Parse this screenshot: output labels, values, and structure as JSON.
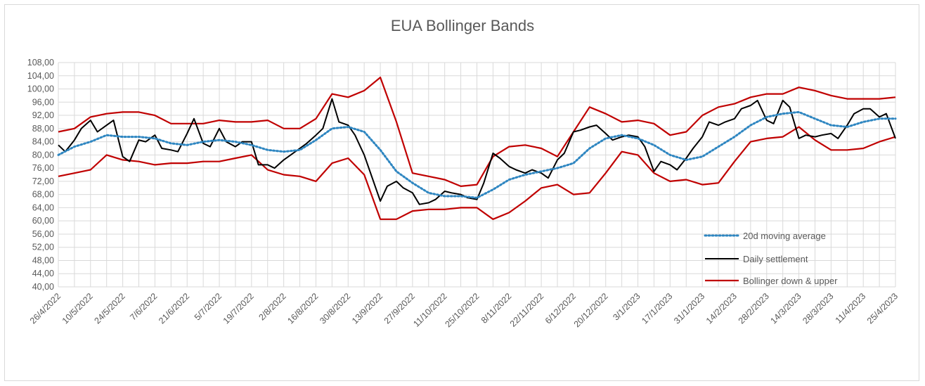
{
  "chart_data": {
    "type": "line",
    "title": "EUA Bollinger Bands",
    "xlabel": "",
    "ylabel": "",
    "ylim": [
      40,
      108
    ],
    "y_ticks": [
      "40,00",
      "44,00",
      "48,00",
      "52,00",
      "56,00",
      "60,00",
      "64,00",
      "68,00",
      "72,00",
      "76,00",
      "80,00",
      "84,00",
      "88,00",
      "92,00",
      "96,00",
      "100,00",
      "104,00",
      "108,00"
    ],
    "x_ticks": [
      "26/4/2022",
      "10/5/2022",
      "24/5/2022",
      "7/6/2022",
      "21/6/2022",
      "5/7/2022",
      "19/7/2022",
      "2/8/2022",
      "16/8/2022",
      "30/8/2022",
      "13/9/2022",
      "27/9/2022",
      "11/10/2022",
      "25/10/2022",
      "8/11/2022",
      "22/11/2022",
      "6/12/2022",
      "20/12/2022",
      "3/1/2023",
      "17/1/2023",
      "31/1/2023",
      "14/2/2023",
      "28/2/2023",
      "14/3/2023",
      "28/3/2023",
      "11/4/2023",
      "25/4/2023"
    ],
    "grid": true,
    "legend_position": "bottom-right",
    "series": [
      {
        "name": "20d moving average",
        "color": "#2e86c1",
        "style": "dotted",
        "x": [
          "26/4/2022",
          "3/5/2022",
          "10/5/2022",
          "17/5/2022",
          "24/5/2022",
          "31/5/2022",
          "7/6/2022",
          "14/6/2022",
          "21/6/2022",
          "28/6/2022",
          "5/7/2022",
          "12/7/2022",
          "19/7/2022",
          "26/7/2022",
          "2/8/2022",
          "9/8/2022",
          "16/8/2022",
          "23/8/2022",
          "30/8/2022",
          "6/9/2022",
          "13/9/2022",
          "20/9/2022",
          "27/9/2022",
          "4/10/2022",
          "11/10/2022",
          "18/10/2022",
          "25/10/2022",
          "1/11/2022",
          "8/11/2022",
          "15/11/2022",
          "22/11/2022",
          "29/11/2022",
          "6/12/2022",
          "13/12/2022",
          "20/12/2022",
          "27/12/2022",
          "3/1/2023",
          "10/1/2023",
          "17/1/2023",
          "24/1/2023",
          "31/1/2023",
          "7/2/2023",
          "14/2/2023",
          "21/2/2023",
          "28/2/2023",
          "7/3/2023",
          "14/3/2023",
          "21/3/2023",
          "28/3/2023",
          "4/4/2023",
          "11/4/2023",
          "18/4/2023",
          "25/4/2023"
        ],
        "values": [
          80.0,
          82.5,
          84.0,
          86.0,
          85.5,
          85.5,
          85.0,
          83.5,
          83.0,
          84.0,
          84.5,
          84.0,
          83.0,
          81.5,
          81.0,
          81.5,
          84.5,
          88.0,
          88.5,
          87.0,
          81.5,
          75.0,
          71.5,
          68.5,
          67.5,
          67.5,
          67.0,
          69.5,
          72.5,
          74.0,
          75.0,
          76.0,
          77.5,
          82.0,
          85.0,
          86.0,
          85.0,
          83.0,
          80.0,
          78.5,
          79.5,
          82.5,
          85.5,
          89.0,
          91.5,
          92.5,
          93.0,
          91.0,
          89.0,
          88.5,
          90.0,
          91.0,
          91.0
        ]
      },
      {
        "name": "Daily settlement",
        "color": "#000000",
        "style": "solid",
        "x": [
          "26/4/2022",
          "29/4/2022",
          "3/5/2022",
          "6/5/2022",
          "10/5/2022",
          "13/5/2022",
          "17/5/2022",
          "20/5/2022",
          "24/5/2022",
          "27/5/2022",
          "31/5/2022",
          "3/6/2022",
          "7/6/2022",
          "10/6/2022",
          "14/6/2022",
          "17/6/2022",
          "21/6/2022",
          "24/6/2022",
          "28/6/2022",
          "1/7/2022",
          "5/7/2022",
          "8/7/2022",
          "12/7/2022",
          "15/7/2022",
          "19/7/2022",
          "22/7/2022",
          "26/7/2022",
          "29/7/2022",
          "2/8/2022",
          "5/8/2022",
          "9/8/2022",
          "12/8/2022",
          "16/8/2022",
          "19/8/2022",
          "23/8/2022",
          "26/8/2022",
          "30/8/2022",
          "2/9/2022",
          "6/9/2022",
          "9/9/2022",
          "13/9/2022",
          "16/9/2022",
          "20/9/2022",
          "23/9/2022",
          "27/9/2022",
          "30/9/2022",
          "4/10/2022",
          "7/10/2022",
          "11/10/2022",
          "14/10/2022",
          "18/10/2022",
          "21/10/2022",
          "25/10/2022",
          "28/10/2022",
          "1/11/2022",
          "4/11/2022",
          "8/11/2022",
          "11/11/2022",
          "15/11/2022",
          "18/11/2022",
          "22/11/2022",
          "25/11/2022",
          "29/11/2022",
          "2/12/2022",
          "6/12/2022",
          "9/12/2022",
          "13/12/2022",
          "16/12/2022",
          "20/12/2022",
          "23/12/2022",
          "27/12/2022",
          "30/12/2022",
          "3/1/2023",
          "6/1/2023",
          "10/1/2023",
          "13/1/2023",
          "17/1/2023",
          "20/1/2023",
          "24/1/2023",
          "27/1/2023",
          "31/1/2023",
          "3/2/2023",
          "7/2/2023",
          "10/2/2023",
          "14/2/2023",
          "17/2/2023",
          "21/2/2023",
          "24/2/2023",
          "28/2/2023",
          "3/3/2023",
          "7/3/2023",
          "10/3/2023",
          "14/3/2023",
          "17/3/2023",
          "21/3/2023",
          "24/3/2023",
          "28/3/2023",
          "31/3/2023",
          "4/4/2023",
          "7/4/2023",
          "11/4/2023",
          "14/4/2023",
          "18/4/2023",
          "21/4/2023",
          "25/4/2023"
        ],
        "values": [
          83.0,
          81.0,
          84.5,
          88.0,
          90.5,
          87.0,
          89.0,
          90.5,
          79.5,
          78.0,
          84.5,
          84.0,
          86.0,
          82.0,
          81.5,
          81.0,
          86.5,
          91.0,
          83.5,
          82.5,
          88.0,
          84.0,
          82.5,
          84.0,
          84.0,
          77.0,
          77.0,
          76.0,
          78.5,
          80.0,
          82.0,
          83.5,
          86.0,
          88.0,
          97.0,
          90.0,
          89.0,
          86.0,
          80.0,
          74.0,
          66.0,
          70.5,
          72.0,
          70.0,
          68.5,
          65.0,
          65.5,
          66.5,
          69.0,
          68.5,
          68.0,
          67.0,
          66.5,
          71.5,
          80.5,
          79.0,
          76.5,
          75.5,
          74.5,
          75.5,
          74.5,
          73.0,
          78.5,
          80.5,
          87.0,
          87.5,
          88.5,
          89.0,
          86.5,
          84.5,
          85.5,
          86.0,
          85.5,
          82.5,
          75.0,
          78.0,
          77.0,
          75.5,
          79.0,
          82.0,
          85.5,
          90.0,
          89.0,
          90.0,
          91.0,
          94.0,
          95.0,
          96.5,
          90.5,
          89.5,
          96.5,
          94.5,
          85.0,
          86.0,
          85.5,
          86.0,
          86.5,
          85.0,
          89.0,
          92.5,
          94.0,
          94.0,
          91.5,
          92.5,
          85.0
        ]
      },
      {
        "name": "Bollinger down & upper",
        "color": "#c00000",
        "style": "solid",
        "lines": [
          {
            "part": "upper",
            "x": [
              "26/4/2022",
              "3/5/2022",
              "10/5/2022",
              "17/5/2022",
              "24/5/2022",
              "31/5/2022",
              "7/6/2022",
              "14/6/2022",
              "21/6/2022",
              "28/6/2022",
              "5/7/2022",
              "12/7/2022",
              "19/7/2022",
              "26/7/2022",
              "2/8/2022",
              "9/8/2022",
              "16/8/2022",
              "23/8/2022",
              "30/8/2022",
              "6/9/2022",
              "13/9/2022",
              "20/9/2022",
              "27/9/2022",
              "4/10/2022",
              "11/10/2022",
              "18/10/2022",
              "25/10/2022",
              "1/11/2022",
              "8/11/2022",
              "15/11/2022",
              "22/11/2022",
              "29/11/2022",
              "6/12/2022",
              "13/12/2022",
              "20/12/2022",
              "27/12/2022",
              "3/1/2023",
              "10/1/2023",
              "17/1/2023",
              "24/1/2023",
              "31/1/2023",
              "7/2/2023",
              "14/2/2023",
              "21/2/2023",
              "28/2/2023",
              "7/3/2023",
              "14/3/2023",
              "21/3/2023",
              "28/3/2023",
              "4/4/2023",
              "11/4/2023",
              "18/4/2023",
              "25/4/2023"
            ],
            "values": [
              87.0,
              88.0,
              91.5,
              92.5,
              93.0,
              93.0,
              92.0,
              89.5,
              89.5,
              89.5,
              90.5,
              90.0,
              90.0,
              90.5,
              88.0,
              88.0,
              91.0,
              98.5,
              97.5,
              99.5,
              103.5,
              90.0,
              74.5,
              73.5,
              72.5,
              70.5,
              71.0,
              79.5,
              82.5,
              83.0,
              82.0,
              79.5,
              87.0,
              94.5,
              92.5,
              90.0,
              90.5,
              89.5,
              86.0,
              87.0,
              92.0,
              94.5,
              95.5,
              97.5,
              98.5,
              98.5,
              100.5,
              99.5,
              98.0,
              97.0,
              97.0,
              97.0,
              97.5
            ]
          },
          {
            "part": "lower",
            "x": [
              "26/4/2022",
              "3/5/2022",
              "10/5/2022",
              "17/5/2022",
              "24/5/2022",
              "31/5/2022",
              "7/6/2022",
              "14/6/2022",
              "21/6/2022",
              "28/6/2022",
              "5/7/2022",
              "12/7/2022",
              "19/7/2022",
              "26/7/2022",
              "2/8/2022",
              "9/8/2022",
              "16/8/2022",
              "23/8/2022",
              "30/8/2022",
              "6/9/2022",
              "13/9/2022",
              "20/9/2022",
              "27/9/2022",
              "4/10/2022",
              "11/10/2022",
              "18/10/2022",
              "25/10/2022",
              "1/11/2022",
              "8/11/2022",
              "15/11/2022",
              "22/11/2022",
              "29/11/2022",
              "6/12/2022",
              "13/12/2022",
              "20/12/2022",
              "27/12/2022",
              "3/1/2023",
              "10/1/2023",
              "17/1/2023",
              "24/1/2023",
              "31/1/2023",
              "7/2/2023",
              "14/2/2023",
              "21/2/2023",
              "28/2/2023",
              "7/3/2023",
              "14/3/2023",
              "21/3/2023",
              "28/3/2023",
              "4/4/2023",
              "11/4/2023",
              "18/4/2023",
              "25/4/2023"
            ],
            "values": [
              73.5,
              74.5,
              75.5,
              80.0,
              78.5,
              78.0,
              77.0,
              77.5,
              77.5,
              78.0,
              78.0,
              79.0,
              80.0,
              75.5,
              74.0,
              73.5,
              72.0,
              77.5,
              79.0,
              74.0,
              60.5,
              60.5,
              63.0,
              63.5,
              63.5,
              64.0,
              64.0,
              60.5,
              62.5,
              66.0,
              70.0,
              71.0,
              68.0,
              68.5,
              74.5,
              81.0,
              80.0,
              74.5,
              72.0,
              72.5,
              71.0,
              71.5,
              78.0,
              84.0,
              85.0,
              85.5,
              88.5,
              84.5,
              81.5,
              81.5,
              82.0,
              84.0,
              85.5
            ]
          }
        ]
      }
    ]
  }
}
